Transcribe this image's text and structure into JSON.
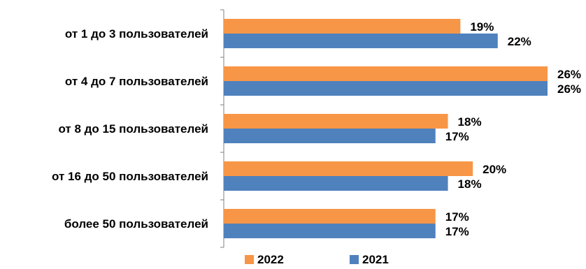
{
  "chart_data": {
    "type": "bar",
    "orientation": "horizontal",
    "categories": [
      "от 1 до 3 пользователей",
      "от 4 до 7 пользователей",
      "от 8 до 15 пользователей",
      "от 16 до 50 пользователей",
      "более 50 пользователей"
    ],
    "series": [
      {
        "name": "2022",
        "color": "#F79646",
        "values": [
          19,
          26,
          18,
          20,
          17
        ]
      },
      {
        "name": "2021",
        "color": "#4F81BD",
        "values": [
          22,
          26,
          17,
          18,
          17
        ]
      }
    ],
    "value_suffix": "%",
    "xlim": [
      0,
      28
    ],
    "grid": false,
    "legend_position": "bottom"
  }
}
